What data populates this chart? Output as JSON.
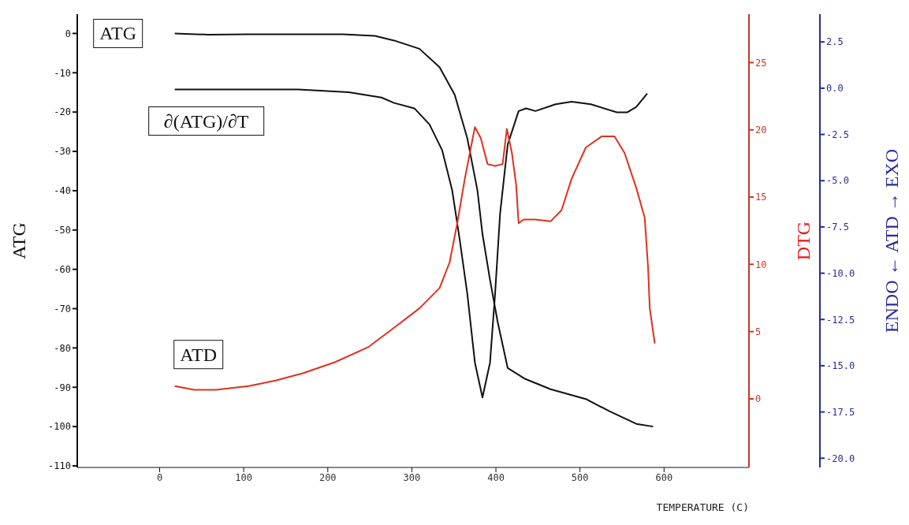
{
  "chart_data": {
    "type": "line",
    "xlabel": "TEMPERATURE (C)",
    "ylabel": "ATG",
    "y2label": "DTG",
    "y3label": "ENDO ← ATD → EXO",
    "xlim": [
      -98,
      701
    ],
    "xticks": [
      0,
      100,
      200,
      300,
      400,
      500,
      600
    ],
    "ylim": [
      -110.4,
      4.9
    ],
    "yticks": [
      0,
      -10,
      -20,
      -30,
      -40,
      -50,
      -60,
      -70,
      -80,
      -90,
      -100,
      -110
    ],
    "y2lim": [
      -5.1,
      28.6
    ],
    "y2ticks": [
      0,
      5,
      10,
      15,
      20,
      25
    ],
    "y3lim": [
      -20.5,
      4.0
    ],
    "y3ticks": [
      2.5,
      {
        "value": 0,
        "label": "0.0"
      },
      -2.5,
      {
        "value": -5,
        "label": "-5.0"
      },
      -7.5,
      {
        "value": -10,
        "label": "-10.0"
      },
      -12.5,
      {
        "value": -15,
        "label": "-15.0"
      },
      -17.5,
      {
        "value": -20,
        "label": "-20.0"
      }
    ],
    "series": [
      {
        "name": "ATG",
        "color": "#111111",
        "axis": "y",
        "x": [
          18,
          58,
          104,
          165,
          218,
          256,
          279,
          309,
          333,
          351,
          366,
          378,
          384,
          393,
          402,
          414,
          435,
          465,
          507,
          535,
          567,
          587
        ],
        "values": [
          0,
          -0.3,
          -0.2,
          -0.2,
          -0.2,
          -0.6,
          -1.8,
          -3.9,
          -8.6,
          -15.6,
          -26.7,
          -39.9,
          -51.0,
          -62.7,
          -73.3,
          -85.1,
          -87.9,
          -90.5,
          -93.0,
          -96.1,
          -99.3,
          -100.0
        ]
      },
      {
        "name": "∂(ATG)/∂T",
        "color": "#111111",
        "axis": "y2",
        "x": [
          18,
          88,
          165,
          225,
          264,
          279,
          303,
          321,
          336,
          348,
          357,
          366,
          375,
          384,
          393,
          399,
          405,
          414,
          427,
          436,
          447,
          471,
          490,
          513,
          544,
          556,
          567,
          580
        ],
        "values": [
          23.0,
          23.0,
          23.0,
          22.8,
          22.4,
          22.0,
          21.6,
          20.4,
          18.5,
          15.5,
          11.8,
          7.8,
          2.7,
          0.1,
          2.7,
          7.8,
          13.8,
          18.9,
          21.4,
          21.6,
          21.4,
          21.9,
          22.1,
          21.9,
          21.3,
          21.3,
          21.7,
          22.7
        ]
      },
      {
        "name": "ATD",
        "color": "#e0301e",
        "axis": "y3",
        "x": [
          18,
          41,
          67,
          106,
          138,
          171,
          209,
          248,
          286,
          309,
          333,
          345,
          354,
          363,
          369,
          375,
          382,
          390,
          399,
          408,
          413,
          419,
          424,
          427,
          433,
          447,
          465,
          478,
          490,
          507,
          526,
          541,
          553,
          567,
          577,
          581,
          583,
          589
        ],
        "values": [
          -16.1,
          -16.3,
          -16.3,
          -16.1,
          -15.8,
          -15.4,
          -14.8,
          -14.0,
          -12.7,
          -11.9,
          -10.8,
          -9.4,
          -7.3,
          -4.9,
          -3.5,
          -2.1,
          -2.7,
          -4.1,
          -4.2,
          -4.1,
          -2.2,
          -3.5,
          -5.2,
          -7.3,
          -7.1,
          -7.1,
          -7.2,
          -6.6,
          -4.9,
          -3.2,
          -2.6,
          -2.6,
          -3.5,
          -5.4,
          -7.0,
          -9.7,
          -11.9,
          -13.8
        ]
      }
    ]
  }
}
